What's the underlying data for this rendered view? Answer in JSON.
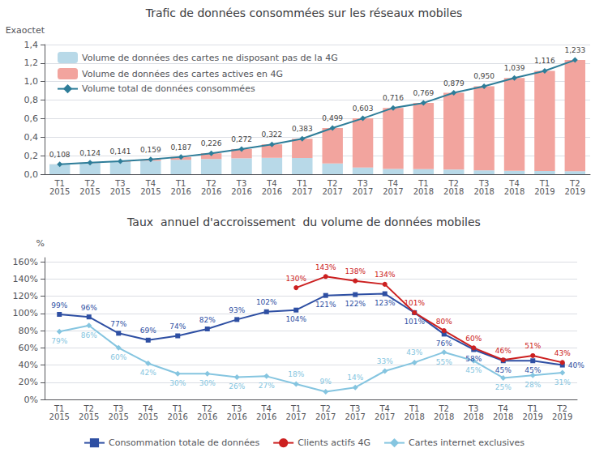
{
  "chart_data": [
    {
      "type": "bar",
      "title": "Trafic de données consommées sur les réseaux mobiles",
      "ylabel": "Exaoctet",
      "categories": [
        "T1\n2015",
        "T2\n2015",
        "T3\n2015",
        "T4\n2015",
        "T1\n2016",
        "T2\n2016",
        "T3\n2016",
        "T4\n2016",
        "T1\n2017",
        "T2\n2017",
        "T3\n2017",
        "T4\n2017",
        "T1\n2018",
        "T2\n2018",
        "T3\n2018",
        "T4\n2018",
        "T1\n2019",
        "T2\n2019"
      ],
      "stacked": true,
      "grid": true,
      "legend": "upper left",
      "ylim": [
        0.0,
        1.4
      ],
      "yticks": [
        {
          "value": 0.0,
          "label": "0,0"
        },
        {
          "value": 0.2,
          "label": "0,2"
        },
        {
          "value": 0.4,
          "label": "0,4"
        },
        {
          "value": 0.6,
          "label": "0,6"
        },
        {
          "value": 0.8,
          "label": "0,8"
        },
        {
          "value": 1.0,
          "label": "1,0"
        },
        {
          "value": 1.2,
          "label": "1,2"
        },
        {
          "value": 1.4,
          "label": "1,4"
        }
      ],
      "series": [
        {
          "name": "Volume de données des cartes ne disposant pas de la 4G",
          "type": "bar",
          "color": "#B8D9E8",
          "values": [
            0.107,
            0.12,
            0.133,
            0.145,
            0.155,
            0.164,
            0.172,
            0.177,
            0.175,
            0.115,
            0.073,
            0.057,
            0.055,
            0.05,
            0.042,
            0.037,
            0.036,
            0.033
          ]
        },
        {
          "name": "Volume de données des cartes actives en 4G",
          "type": "bar",
          "color": "#F2A49E",
          "values": [
            0.001,
            0.004,
            0.008,
            0.014,
            0.032,
            0.062,
            0.1,
            0.145,
            0.208,
            0.384,
            0.53,
            0.659,
            0.714,
            0.829,
            0.908,
            1.002,
            1.08,
            1.2
          ]
        },
        {
          "name": "Volume total de données consommées",
          "type": "line",
          "color": "#2E7D99",
          "marker": "diamond",
          "data_labels": true,
          "values": [
            0.108,
            0.124,
            0.141,
            0.159,
            0.187,
            0.226,
            0.272,
            0.322,
            0.383,
            0.499,
            0.603,
            0.716,
            0.769,
            0.879,
            0.95,
            1.039,
            1.116,
            1.233
          ],
          "value_labels": [
            "0,108",
            "0,124",
            "0,141",
            "0,159",
            "0,187",
            "0,226",
            "0,272",
            "0,322",
            "0,383",
            "0,499",
            "0,603",
            "0,716",
            "0,769",
            "0,879",
            "0,950",
            "1,039",
            "1,116",
            "1,233"
          ]
        }
      ]
    },
    {
      "type": "line",
      "title": "Taux  annuel d'accroissement  du volume de données mobiles",
      "ylabel": "%",
      "categories": [
        "T1\n2015",
        "T2\n2015",
        "T3\n2015",
        "T4\n2015",
        "T1\n2016",
        "T2\n2016",
        "T3\n2016",
        "T4\n2016",
        "T1\n2017",
        "T2\n2017",
        "T3\n2017",
        "T4\n2017",
        "T1\n2018",
        "T2\n2018",
        "T3\n2018",
        "T4\n2018",
        "T1\n2019",
        "T2\n2019"
      ],
      "grid": true,
      "legend": "bottom",
      "ylim": [
        0,
        165
      ],
      "yticks": [
        {
          "value": 0,
          "label": "0%"
        },
        {
          "value": 20,
          "label": "20%"
        },
        {
          "value": 40,
          "label": "40%"
        },
        {
          "value": 60,
          "label": "60%"
        },
        {
          "value": 80,
          "label": "80%"
        },
        {
          "value": 100,
          "label": "100%"
        },
        {
          "value": 120,
          "label": "120%"
        },
        {
          "value": 140,
          "label": "140%"
        },
        {
          "value": 160,
          "label": "160%"
        }
      ],
      "series": [
        {
          "name": "Consommation totale de données",
          "color": "#2E4FA3",
          "marker": "square",
          "data_labels": true,
          "values": [
            99,
            96,
            77,
            69,
            74,
            82,
            93,
            102,
            104,
            121,
            122,
            123,
            101,
            76,
            58,
            45,
            45,
            40
          ],
          "value_labels": [
            "99%",
            "96%",
            "77%",
            "69%",
            "74%",
            "82%",
            "93%",
            "102%",
            "104%",
            "121%",
            "122%",
            "123%",
            "101%",
            "76%",
            "58%",
            "45%",
            "45%",
            "40%"
          ]
        },
        {
          "name": "Clients actifs 4G",
          "color": "#CC2020",
          "marker": "circle",
          "data_labels": true,
          "values": [
            null,
            null,
            null,
            null,
            null,
            null,
            null,
            null,
            130,
            143,
            138,
            134,
            101,
            80,
            60,
            46,
            51,
            43
          ],
          "value_labels": [
            null,
            null,
            null,
            null,
            null,
            null,
            null,
            null,
            "130%",
            "143%",
            "138%",
            "134%",
            "101%",
            "80%",
            "60%",
            "46%",
            "51%",
            "43%"
          ]
        },
        {
          "name": "Cartes internet exclusives",
          "color": "#85C5E0",
          "marker": "diamond",
          "data_labels": true,
          "values": [
            79,
            86,
            60,
            42,
            30,
            30,
            26,
            27,
            18,
            9,
            14,
            33,
            43,
            55,
            45,
            25,
            28,
            31
          ],
          "value_labels": [
            "79%",
            "86%",
            "60%",
            "42%",
            "30%",
            "30%",
            "26%",
            "27%",
            "18%",
            "9%",
            "14%",
            "33%",
            "43%",
            "55%",
            "45%",
            "25%",
            "28%",
            "31%"
          ]
        }
      ]
    }
  ]
}
